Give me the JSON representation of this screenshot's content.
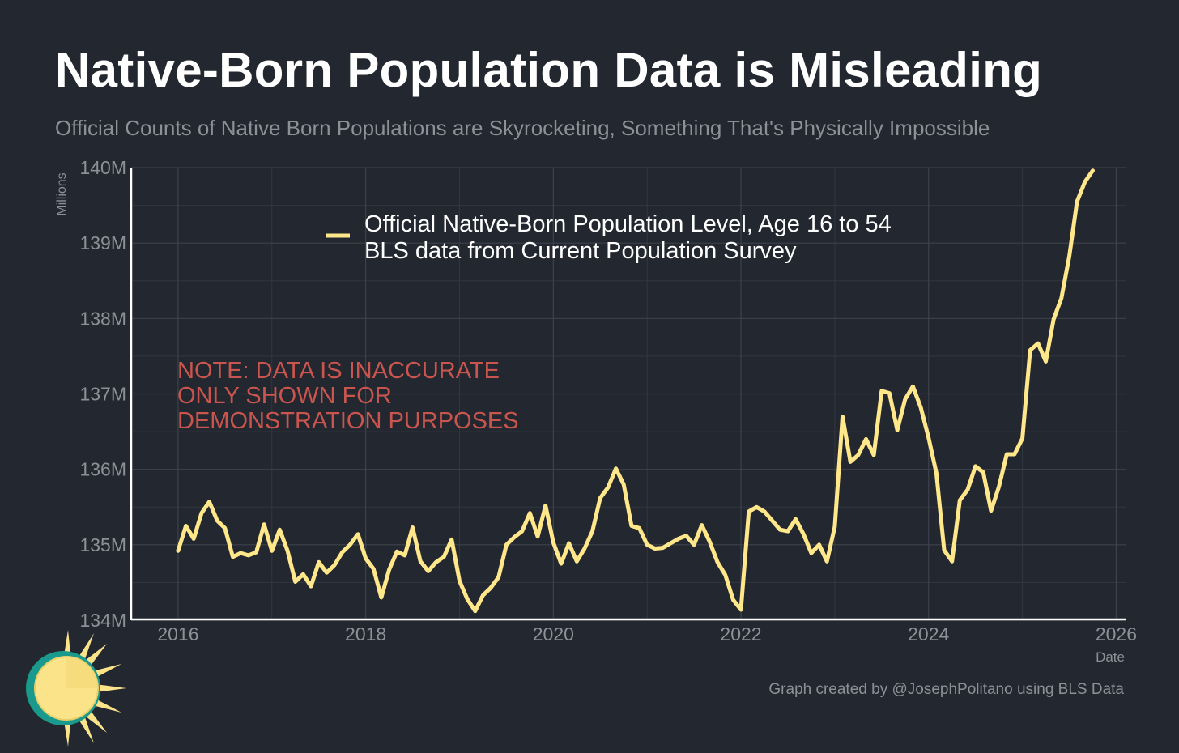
{
  "header": {
    "title": "Native-Born Population Data is Misleading",
    "subtitle": "Official Counts of Native Born Populations are Skyrocketing, Something That's Physically Impossible"
  },
  "footer": {
    "credit": "Graph created by @JosephPolitano using BLS Data"
  },
  "colors": {
    "background": "#23272f",
    "line": "#ffe78a",
    "note": "#c9554e",
    "axis_text": "#8c9097",
    "grid": "#3d424b",
    "logo_ring": "#1a9a8c",
    "logo_sun": "#fbe38a"
  },
  "logo": {
    "icon": "sun-logo-icon"
  },
  "chart_data": {
    "type": "line",
    "title": "Native-Born Population Data is Misleading",
    "xlabel": "Date",
    "ylabel": "Millions",
    "xlim": [
      2015.5,
      2026.1
    ],
    "ylim": [
      134,
      140
    ],
    "x_ticks": [
      2016,
      2018,
      2020,
      2022,
      2024,
      2026
    ],
    "x_tick_labels": [
      "2016",
      "2018",
      "2020",
      "2022",
      "2024",
      "2026"
    ],
    "y_ticks": [
      134,
      135,
      136,
      137,
      138,
      139,
      140
    ],
    "y_tick_labels": [
      "134M",
      "135M",
      "136M",
      "137M",
      "138M",
      "139M",
      "140M"
    ],
    "grid": true,
    "legend": {
      "position": "top-center",
      "entries": [
        "Official Native-Born Population Level, Age 16 to 54",
        "BLS data from Current Population Survey"
      ]
    },
    "annotation": {
      "lines": [
        "NOTE: DATA IS INACCURATE",
        "ONLY SHOWN FOR",
        "DEMONSTRATION PURPOSES"
      ],
      "x": 2016,
      "y": 137.3
    },
    "series": [
      {
        "name": "Official Native-Born Population Level, Age 16 to 54",
        "start": 2016.0,
        "step_months": 1,
        "values": [
          134.92,
          135.25,
          135.08,
          135.42,
          135.57,
          135.32,
          135.22,
          134.84,
          134.89,
          134.86,
          134.9,
          135.27,
          134.92,
          135.2,
          134.92,
          134.51,
          134.61,
          134.45,
          134.77,
          134.63,
          134.73,
          134.9,
          135.0,
          135.14,
          134.82,
          134.68,
          134.3,
          134.67,
          134.91,
          134.86,
          135.23,
          134.78,
          134.65,
          134.77,
          134.84,
          135.07,
          134.52,
          134.28,
          134.12,
          134.33,
          134.43,
          134.57,
          135.0,
          135.1,
          135.18,
          135.42,
          135.11,
          135.52,
          135.03,
          134.75,
          135.02,
          134.78,
          134.95,
          135.18,
          135.62,
          135.76,
          136.01,
          135.8,
          135.25,
          135.22,
          135.0,
          134.95,
          134.96,
          135.02,
          135.08,
          135.12,
          135.0,
          135.26,
          135.04,
          134.77,
          134.6,
          134.27,
          134.14,
          135.44,
          135.5,
          135.44,
          135.32,
          135.2,
          135.18,
          135.34,
          135.14,
          134.89,
          135.0,
          134.78,
          135.24,
          136.7,
          136.1,
          136.19,
          136.4,
          136.19,
          137.04,
          137.01,
          136.52,
          136.93,
          137.1,
          136.82,
          136.42,
          135.95,
          134.93,
          134.78,
          135.59,
          135.73,
          136.04,
          135.96,
          135.45,
          135.77,
          136.2,
          136.2,
          136.41,
          137.58,
          137.67,
          137.43,
          137.99,
          138.27,
          138.82,
          139.55,
          139.81,
          139.96
        ]
      }
    ]
  }
}
